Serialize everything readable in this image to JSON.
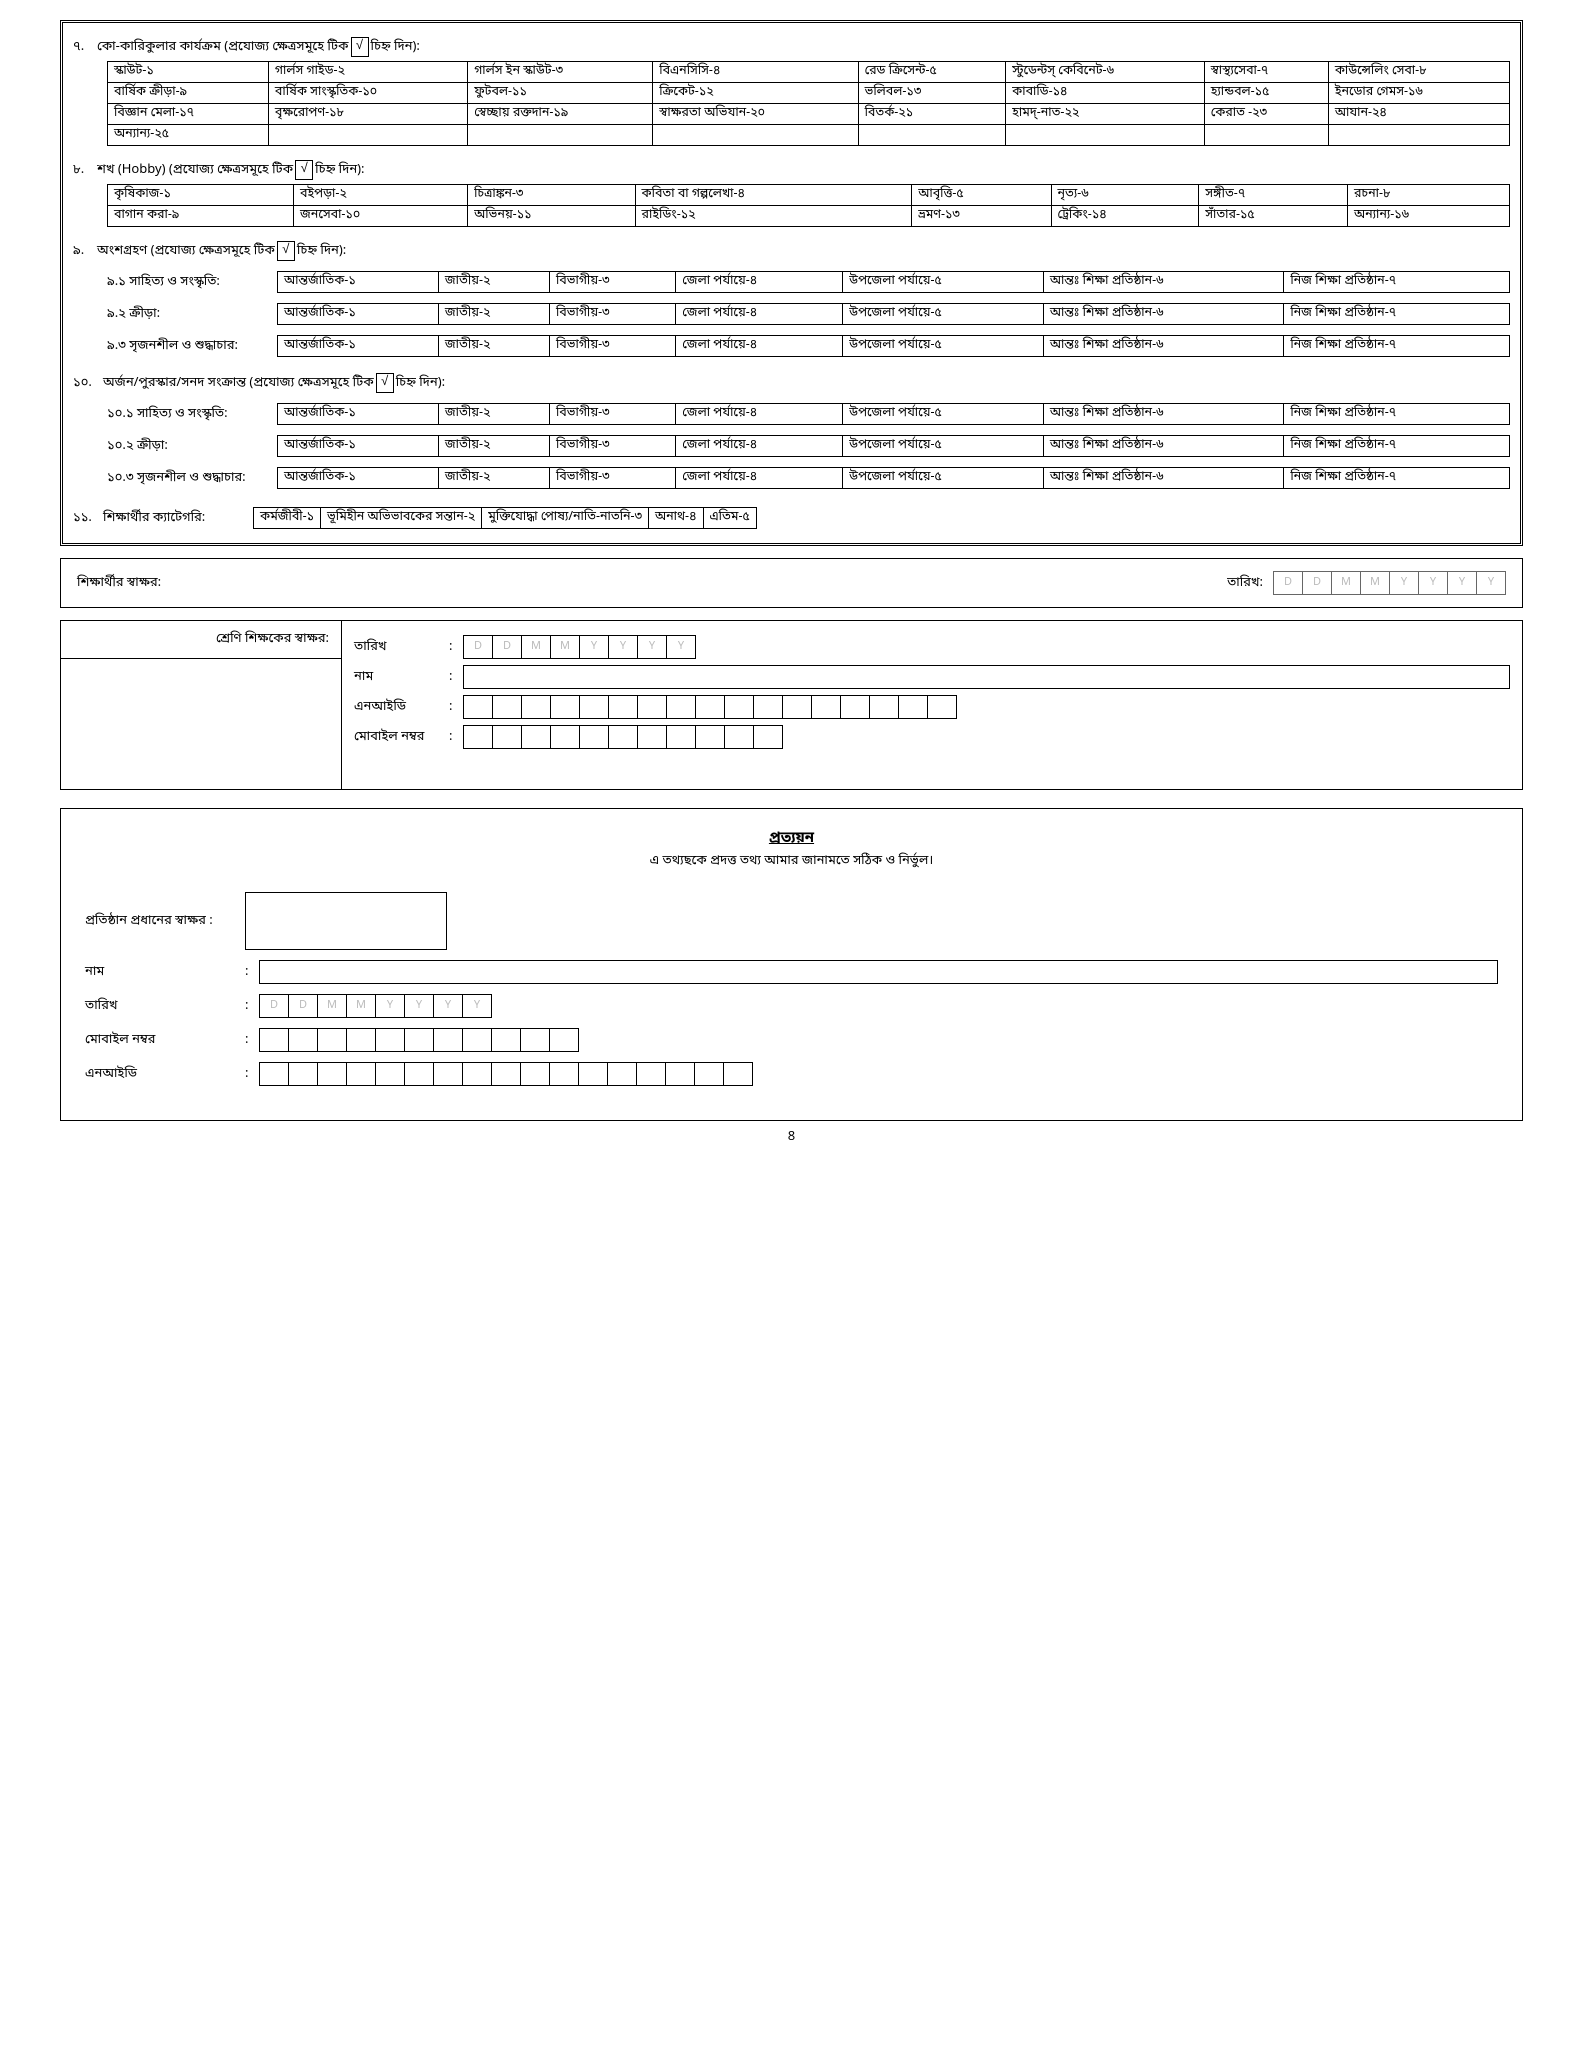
{
  "q7": {
    "num": "৭.",
    "title_pre": "কো-কারিকুলার কার্যক্রম (প্রযোজ্য ক্ষেত্রসমূহে টিক ",
    "tick": "√",
    "title_post": " চিহ্ন দিন):",
    "rows": [
      [
        "স্কাউট-১",
        "গার্লস গাইড-২",
        "গার্লস ইন স্কাউট-৩",
        "বিএনসিসি-৪",
        "রেড ক্রিসেন্ট-৫",
        "স্টুডেন্টস্ কেবিনেট-৬",
        "স্বাস্থ্যসেবা-৭",
        "কাউন্সেলিং সেবা-৮"
      ],
      [
        "বার্ষিক ক্রীড়া-৯",
        "বার্ষিক সাংস্কৃতিক-১০",
        "ফুটবল-১১",
        "ক্রিকেট-১২",
        "ভলিবল-১৩",
        "কাবাডি-১৪",
        "হ্যান্ডবল-১৫",
        "ইনডোর গেমস-১৬"
      ],
      [
        "বিজ্ঞান মেলা-১৭",
        "বৃক্ষরোপণ-১৮",
        "স্বেচ্ছায় রক্তদান-১৯",
        "স্বাক্ষরতা অভিযান-২০",
        "বিতর্ক-২১",
        "হামদ্-নাত-২২",
        "কেরাত -২৩",
        "আযান-২৪"
      ],
      [
        "অন্যান্য-২৫",
        "",
        "",
        "",
        "",
        "",
        "",
        ""
      ]
    ]
  },
  "q8": {
    "num": "৮.",
    "title_pre": "শখ (Hobby) (প্রযোজ্য ক্ষেত্রসমূহে টিক ",
    "title_post": " চিহ্ন দিন):",
    "rows": [
      [
        "কৃষিকাজ-১",
        "বইপড়া-২",
        "চিত্রাঙ্কন-৩",
        "কবিতা বা গল্পলেখা-৪",
        "আবৃত্তি-৫",
        "নৃত্য-৬",
        "সঙ্গীত-৭",
        "রচনা-৮"
      ],
      [
        "বাগান  করা-৯",
        "জনসেবা-১০",
        "অভিনয়-১১",
        "রাইডিং-১২",
        "ভ্রমণ-১৩",
        "ট্রেকিং-১৪",
        "সাঁতার-১৫",
        "অন্যান্য-১৬"
      ]
    ]
  },
  "q9": {
    "num": "৯.",
    "title_pre": "অংশগ্রহণ (প্রযোজ্য ক্ষেত্রসমূহে টিক ",
    "title_post": " চিহ্ন দিন):",
    "subs": [
      {
        "n": "৯.১",
        "label": "সাহিত্য ও সংস্কৃতি:"
      },
      {
        "n": "৯.২",
        "label": "ক্রীড়া:"
      },
      {
        "n": "৯.৩",
        "label": "সৃজনশীল ও শুদ্ধাচার:"
      }
    ],
    "opts": [
      "আন্তর্জাতিক-১",
      "জাতীয়-২",
      "বিভাগীয়-৩",
      "জেলা পর্যায়ে-৪",
      "উপজেলা পর্যায়ে-৫",
      "আন্তঃ শিক্ষা প্রতিষ্ঠান-৬",
      "নিজ শিক্ষা প্রতিষ্ঠান-৭"
    ]
  },
  "q10": {
    "num": "১০.",
    "title_pre": "অর্জন/পুরস্কার/সনদ সংক্রান্ত (প্রযোজ্য ক্ষেত্রসমূহে টিক ",
    "title_post": " চিহ্ন দিন):",
    "subs": [
      {
        "n": "১০.১",
        "label": "সাহিত্য ও সংস্কৃতি:"
      },
      {
        "n": "১০.২",
        "label": "ক্রীড়া:"
      },
      {
        "n": "১০.৩",
        "label": "সৃজনশীল ও শুদ্ধাচার:"
      }
    ]
  },
  "q11": {
    "num": "১১.",
    "label": "শিক্ষার্থীর ক্যাটেগরি:",
    "opts": [
      "কর্মজীবী-১",
      "ভূমিহীন অভিভাবকের সন্তান-২",
      "মুক্তিযোদ্ধা পোষ্য/নাতি-নাতনি-৩",
      "অনাথ-৪",
      "এতিম-৫"
    ]
  },
  "sig": {
    "label": "শিক্ষার্থীর স্বাক্ষর:",
    "date": "তারিখ:",
    "ph": [
      "D",
      "D",
      "M",
      "M",
      "Y",
      "Y",
      "Y",
      "Y"
    ]
  },
  "teacher": {
    "label": "শ্রেণি শিক্ষকের স্বাক্ষর:",
    "fields": {
      "date": "তারিখ",
      "name": "নাম",
      "nid": "এনআইডি",
      "mobile": "মোবাইল নম্বর"
    }
  },
  "cert": {
    "title": "প্রত্যয়ন",
    "sub": "এ তথ্যছকে প্রদত্ত তথ্য আমার জানামতে সঠিক ও নির্ভুল।",
    "head_sig": "প্রতিষ্ঠান প্রধানের স্বাক্ষর",
    "name": "নাম",
    "date": "তারিখ",
    "mobile": "মোবাইল নম্বর",
    "nid": "এনআইডি"
  },
  "page": "8"
}
